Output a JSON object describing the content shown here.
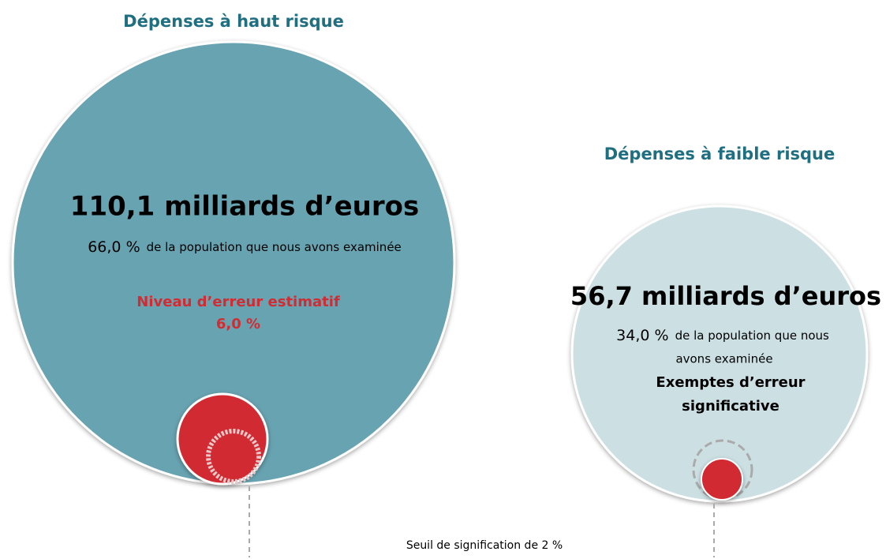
{
  "high_risk": {
    "title": "Dépenses à haut risque",
    "amount": "110,1 milliards d’euros",
    "share": "66,0 %",
    "share_text": "de la population que nous avons examinée",
    "error_label": "Niveau d’erreur estimatif",
    "error_value": "6,0 %"
  },
  "low_risk": {
    "title": "Dépenses à faible risque",
    "amount": "56,7 milliards d’euros",
    "share": "34,0 %",
    "share_text": [
      "de la population que nous",
      "avons examinée"
    ],
    "note": [
      "Exemptes d’erreur",
      "significative"
    ]
  },
  "threshold": "Seuil de signification de 2 %"
}
